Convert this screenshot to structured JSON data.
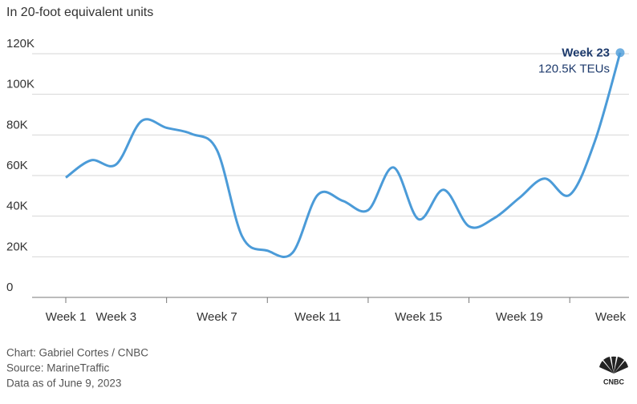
{
  "chart_data": {
    "type": "line",
    "subtitle": "In 20-foot equivalent units",
    "categories": [
      "Week 1",
      null,
      "Week 3",
      null,
      null,
      null,
      "Week 7",
      null,
      null,
      null,
      "Week 11",
      null,
      null,
      null,
      "Week 15",
      null,
      null,
      null,
      "Week 19",
      null,
      null,
      null,
      "Week"
    ],
    "series": [
      {
        "color": "#4b9bd8",
        "values": [
          59,
          67.5,
          65.5,
          86.8,
          83.5,
          80.5,
          72.5,
          30,
          23,
          22,
          50.5,
          47.5,
          43,
          64,
          38.5,
          53,
          35,
          39,
          49,
          58.5,
          50.5,
          77,
          120.5
        ]
      }
    ],
    "ylim": [
      0,
      120
    ],
    "yticks": [
      0,
      {
        "value": 20,
        "label": "20K"
      },
      {
        "value": 40,
        "label": "40K"
      },
      {
        "value": 60,
        "label": "60K"
      },
      {
        "value": 80,
        "label": "80K"
      },
      {
        "value": 100,
        "label": "100K"
      },
      {
        "value": 120,
        "label": "120K"
      }
    ],
    "grid": true,
    "annotation": {
      "title": "Week 23",
      "text": "120.5K TEUs"
    },
    "footer": [
      "Chart: Gabriel Cortes / CNBC",
      "Source: MarineTraffic",
      "Data as of June 9, 2023"
    ],
    "logo": "CNBC"
  }
}
